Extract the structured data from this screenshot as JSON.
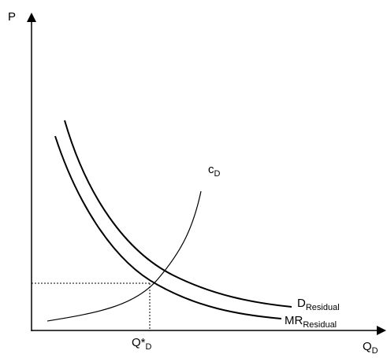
{
  "axes": {
    "y_label": "P",
    "x_label": {
      "main": "Q",
      "sub": "D"
    }
  },
  "curves": [
    {
      "main": "c",
      "sub": "D"
    },
    {
      "main": "D",
      "sub": "Residual"
    },
    {
      "main": "MR",
      "sub": "Residual"
    }
  ],
  "equilibrium": {
    "main": "Q*",
    "sub": "D"
  }
}
